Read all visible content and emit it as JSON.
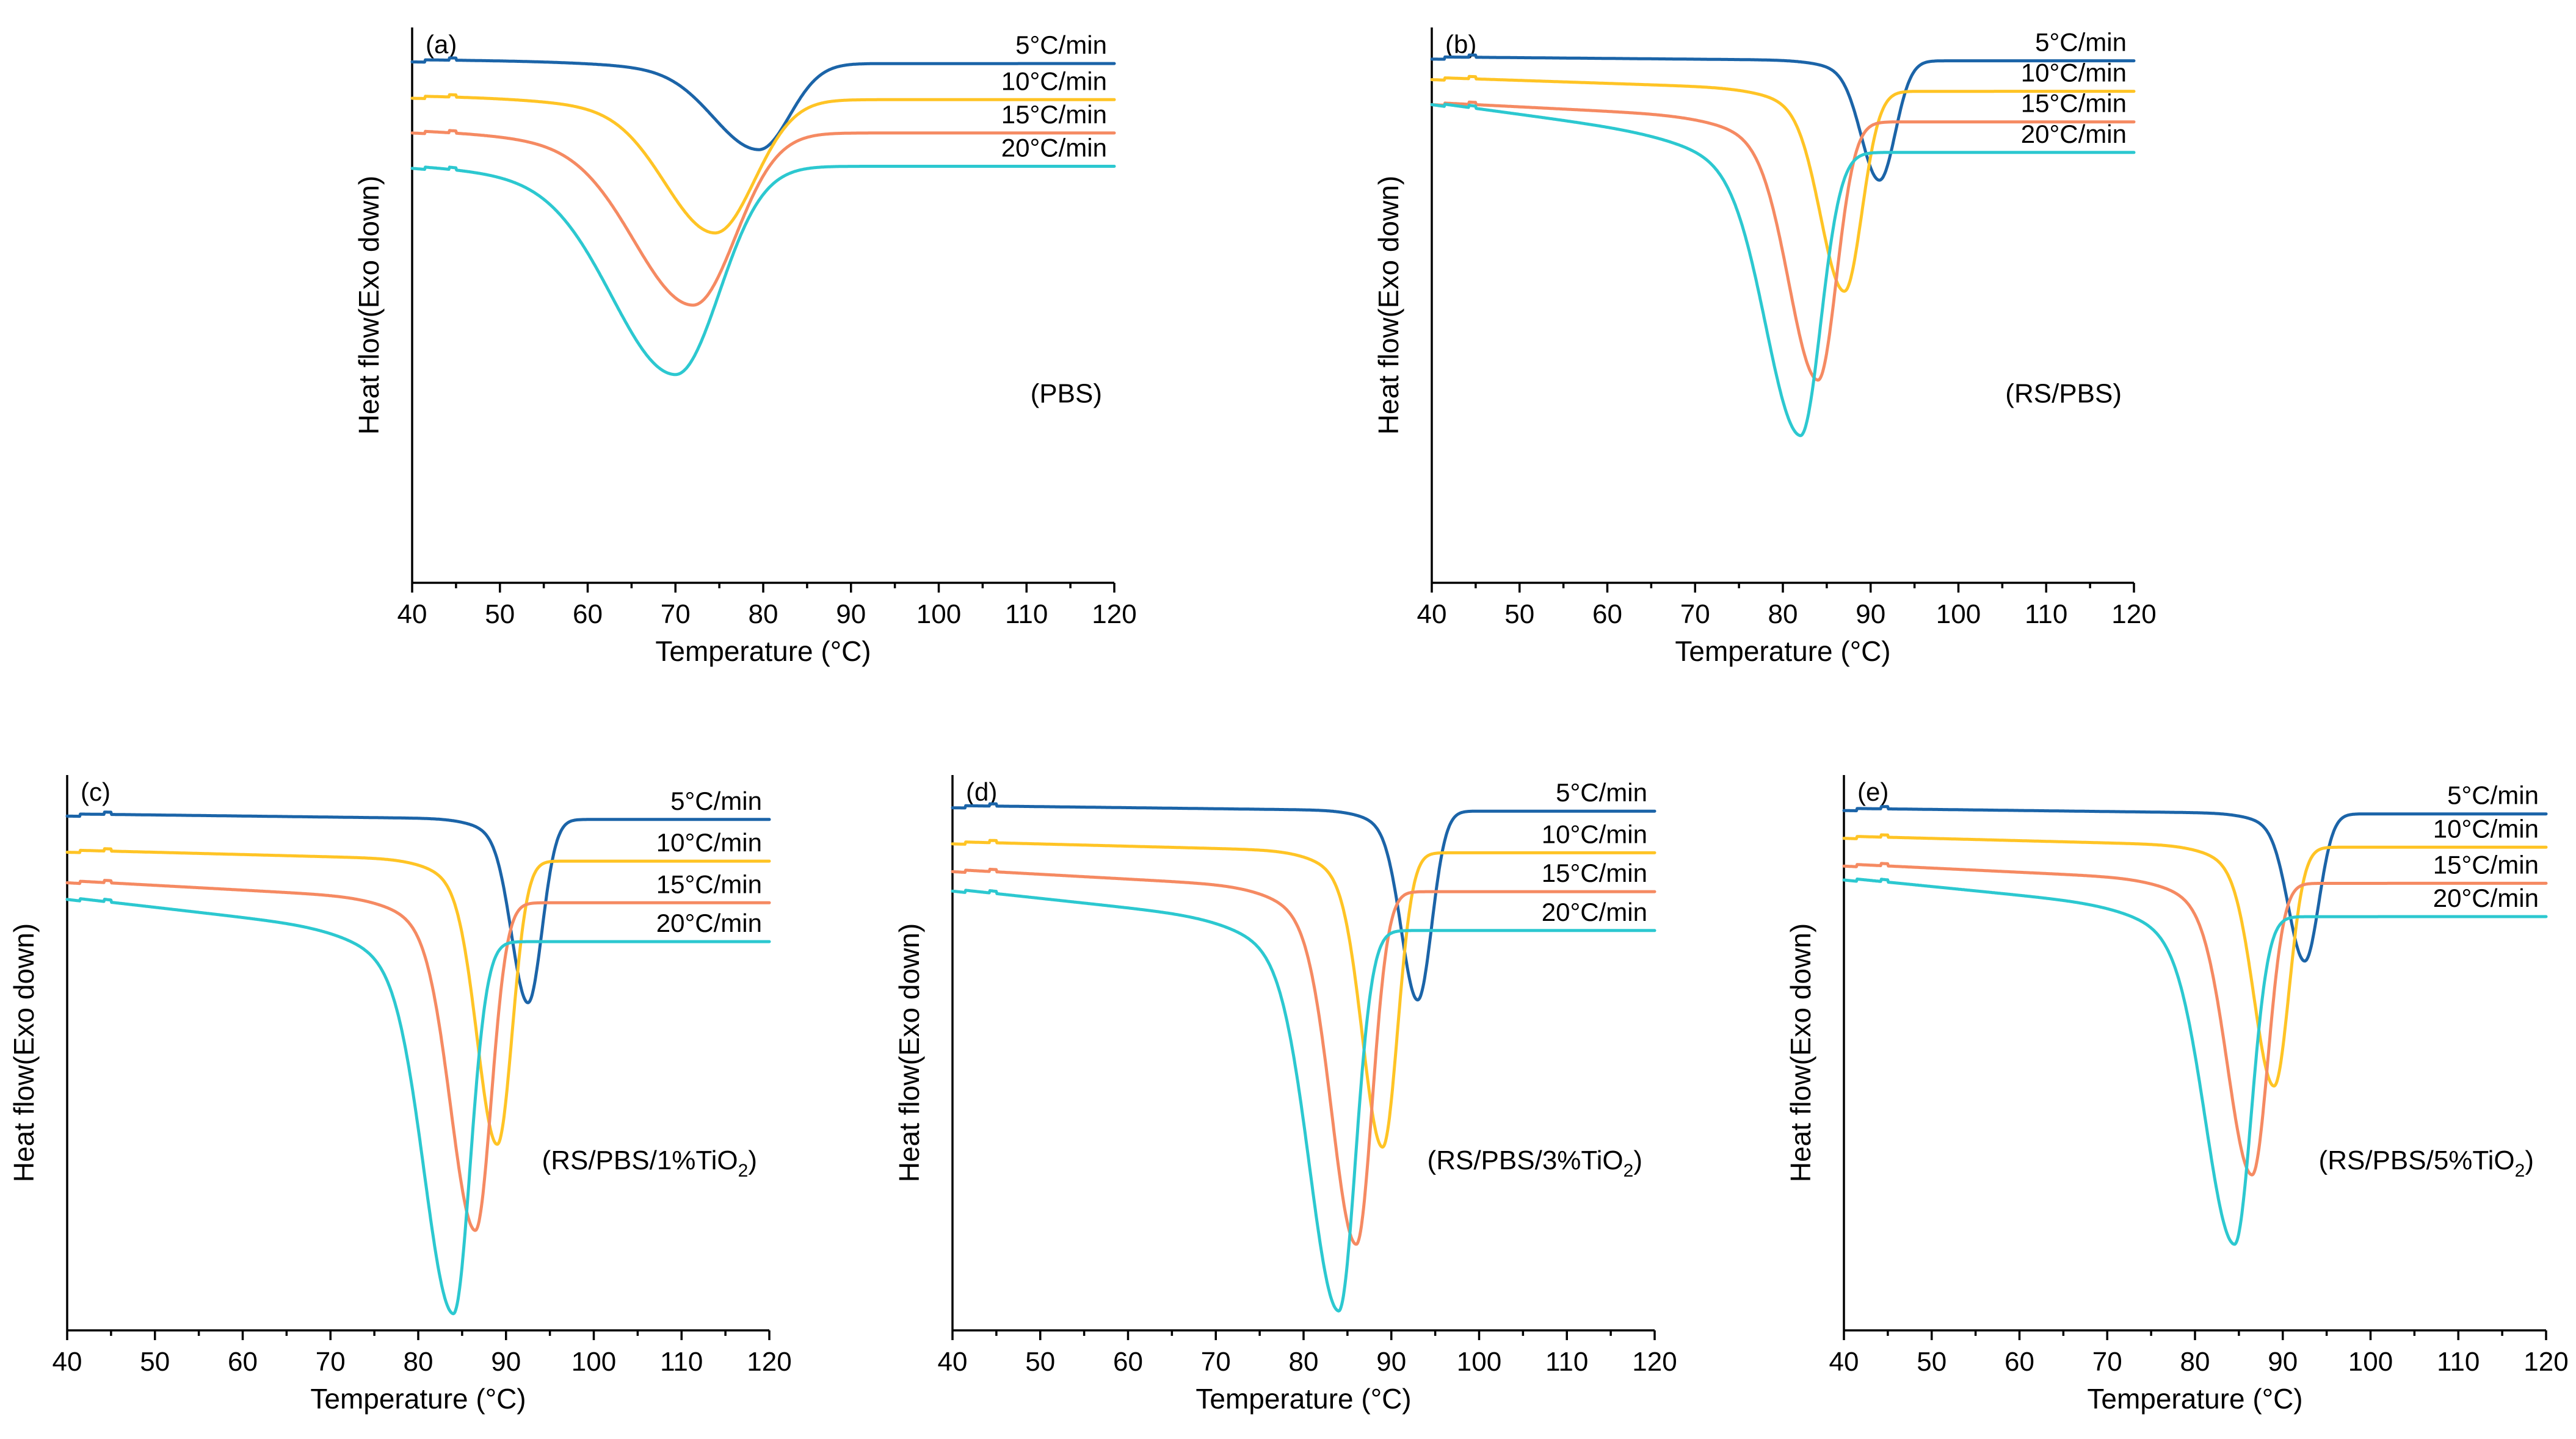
{
  "colors": {
    "5": "#1b64a8",
    "10": "#ffc425",
    "15": "#f58a62",
    "20": "#2cc8d0"
  },
  "chart_data": [
    {
      "type": "line",
      "panel_label": "(a)",
      "sample_label": "(PBS)",
      "xlabel": "Temperature (°C)",
      "ylabel": "Heat flow(Exo down)",
      "xlim": [
        40,
        120
      ],
      "x_ticks": [
        "40",
        "50",
        "60",
        "70",
        "80",
        "90",
        "100",
        "110",
        "120"
      ],
      "ylim": [
        0,
        1
      ],
      "grid": false,
      "legend_placement": "top-right, labels at curve ends",
      "series": [
        {
          "name": "5°C/min",
          "key": "5",
          "baseline": 0.935,
          "pre_drift": 0.007,
          "peak_x": 79.5,
          "depth": 0.155,
          "width_left": 5.0,
          "width_right": 3.5,
          "post_offset": 0.0
        },
        {
          "name": "10°C/min",
          "key": "10",
          "baseline": 0.87,
          "pre_drift": 0.007,
          "peak_x": 74.5,
          "depth": 0.24,
          "width_left": 5.5,
          "width_right": 4.5,
          "post_offset": 0.0
        },
        {
          "name": "15°C/min",
          "key": "15",
          "baseline": 0.81,
          "pre_drift": 0.007,
          "peak_x": 72.0,
          "depth": 0.31,
          "width_left": 6.5,
          "width_right": 4.8,
          "post_offset": 0.0
        },
        {
          "name": "20°C/min",
          "key": "20",
          "baseline": 0.75,
          "pre_drift": 0.007,
          "peak_x": 70.0,
          "depth": 0.375,
          "width_left": 7.0,
          "width_right": 5.0,
          "post_offset": 0.0
        }
      ]
    },
    {
      "type": "line",
      "panel_label": "(b)",
      "sample_label": "(RS/PBS)",
      "xlabel": "Temperature (°C)",
      "ylabel": "Heat flow(Exo down)",
      "xlim": [
        40,
        120
      ],
      "x_ticks": [
        "40",
        "50",
        "60",
        "70",
        "80",
        "90",
        "100",
        "110",
        "120"
      ],
      "ylim": [
        0,
        1
      ],
      "grid": false,
      "legend_placement": "top-right, labels at curve ends",
      "series": [
        {
          "name": "5°C/min",
          "key": "5",
          "baseline": 0.94,
          "pre_drift": 0.007,
          "peak_x": 91.0,
          "depth": 0.215,
          "width_left": 2.0,
          "width_right": 1.8,
          "post_offset": 0.0
        },
        {
          "name": "10°C/min",
          "key": "10",
          "baseline": 0.885,
          "pre_drift": 0.025,
          "peak_x": 87.0,
          "depth": 0.36,
          "width_left": 2.6,
          "width_right": 2.0,
          "post_offset": 0.0
        },
        {
          "name": "15°C/min",
          "key": "15",
          "baseline": 0.83,
          "pre_drift": 0.035,
          "peak_x": 84.0,
          "depth": 0.465,
          "width_left": 3.2,
          "width_right": 2.1,
          "post_offset": 0.0
        },
        {
          "name": "20°C/min",
          "key": "20",
          "baseline": 0.775,
          "pre_drift": 0.09,
          "peak_x": 82.0,
          "depth": 0.51,
          "width_left": 3.8,
          "width_right": 2.3,
          "post_offset": 0.0
        }
      ]
    },
    {
      "type": "line",
      "panel_label": "(c)",
      "sample_label_main": "(RS/PBS/1%TiO",
      "sample_label_sub": "2",
      "sample_label_end": ")",
      "xlabel": "Temperature (°C)",
      "ylabel": "Heat flow(Exo down)",
      "xlim": [
        40,
        120
      ],
      "x_ticks": [
        "40",
        "50",
        "60",
        "70",
        "80",
        "90",
        "100",
        "110",
        "120"
      ],
      "ylim": [
        0,
        1
      ],
      "grid": false,
      "legend_placement": "top-right, labels at curve ends",
      "series": [
        {
          "name": "5°C/min",
          "key": "5",
          "baseline": 0.92,
          "pre_drift": 0.01,
          "peak_x": 92.5,
          "depth": 0.33,
          "width_left": 1.8,
          "width_right": 1.6,
          "post_offset": 0.0
        },
        {
          "name": "10°C/min",
          "key": "10",
          "baseline": 0.845,
          "pre_drift": 0.02,
          "peak_x": 89.0,
          "depth": 0.51,
          "width_left": 2.2,
          "width_right": 1.7,
          "post_offset": 0.0
        },
        {
          "name": "15°C/min",
          "key": "15",
          "baseline": 0.77,
          "pre_drift": 0.04,
          "peak_x": 86.5,
          "depth": 0.59,
          "width_left": 2.7,
          "width_right": 1.8,
          "post_offset": 0.0
        },
        {
          "name": "20°C/min",
          "key": "20",
          "baseline": 0.7,
          "pre_drift": 0.08,
          "peak_x": 84.0,
          "depth": 0.67,
          "width_left": 3.2,
          "width_right": 1.9,
          "post_offset": 0.0
        }
      ]
    },
    {
      "type": "line",
      "panel_label": "(d)",
      "sample_label_main": "(RS/PBS/3%TiO",
      "sample_label_sub": "2",
      "sample_label_end": ")",
      "xlabel": "Temperature (°C)",
      "ylabel": "Heat flow(Exo down)",
      "xlim": [
        40,
        120
      ],
      "x_ticks": [
        "40",
        "50",
        "60",
        "70",
        "80",
        "90",
        "100",
        "110",
        "120"
      ],
      "ylim": [
        0,
        1
      ],
      "grid": false,
      "legend_placement": "top-right, labels at curve ends",
      "series": [
        {
          "name": "5°C/min",
          "key": "5",
          "baseline": 0.935,
          "pre_drift": 0.01,
          "peak_x": 93.0,
          "depth": 0.34,
          "width_left": 1.8,
          "width_right": 1.6,
          "post_offset": 0.0
        },
        {
          "name": "10°C/min",
          "key": "10",
          "baseline": 0.86,
          "pre_drift": 0.02,
          "peak_x": 89.0,
          "depth": 0.53,
          "width_left": 2.2,
          "width_right": 1.7,
          "post_offset": 0.0
        },
        {
          "name": "15°C/min",
          "key": "15",
          "baseline": 0.79,
          "pre_drift": 0.04,
          "peak_x": 86.0,
          "depth": 0.635,
          "width_left": 2.7,
          "width_right": 1.8,
          "post_offset": 0.0
        },
        {
          "name": "20°C/min",
          "key": "20",
          "baseline": 0.72,
          "pre_drift": 0.075,
          "peak_x": 84.0,
          "depth": 0.685,
          "width_left": 3.2,
          "width_right": 1.9,
          "post_offset": 0.0
        }
      ]
    },
    {
      "type": "line",
      "panel_label": "(e)",
      "sample_label_main": "(RS/PBS/5%TiO",
      "sample_label_sub": "2",
      "sample_label_end": ")",
      "xlabel": "Temperature (°C)",
      "ylabel": "Heat flow(Exo down)",
      "xlim": [
        40,
        120
      ],
      "x_ticks": [
        "40",
        "50",
        "60",
        "70",
        "80",
        "90",
        "100",
        "110",
        "120"
      ],
      "ylim": [
        0,
        1
      ],
      "grid": false,
      "legend_placement": "top-right, labels at curve ends",
      "series": [
        {
          "name": "5°C/min",
          "key": "5",
          "baseline": 0.93,
          "pre_drift": 0.01,
          "peak_x": 92.5,
          "depth": 0.265,
          "width_left": 1.8,
          "width_right": 1.6,
          "post_offset": 0.0
        },
        {
          "name": "10°C/min",
          "key": "10",
          "baseline": 0.87,
          "pre_drift": 0.02,
          "peak_x": 89.0,
          "depth": 0.43,
          "width_left": 2.2,
          "width_right": 1.7,
          "post_offset": 0.0
        },
        {
          "name": "15°C/min",
          "key": "15",
          "baseline": 0.805,
          "pre_drift": 0.035,
          "peak_x": 86.5,
          "depth": 0.525,
          "width_left": 2.7,
          "width_right": 1.8,
          "post_offset": 0.0
        },
        {
          "name": "20°C/min",
          "key": "20",
          "baseline": 0.745,
          "pre_drift": 0.07,
          "peak_x": 84.5,
          "depth": 0.59,
          "width_left": 3.2,
          "width_right": 1.9,
          "post_offset": 0.0
        }
      ]
    }
  ]
}
